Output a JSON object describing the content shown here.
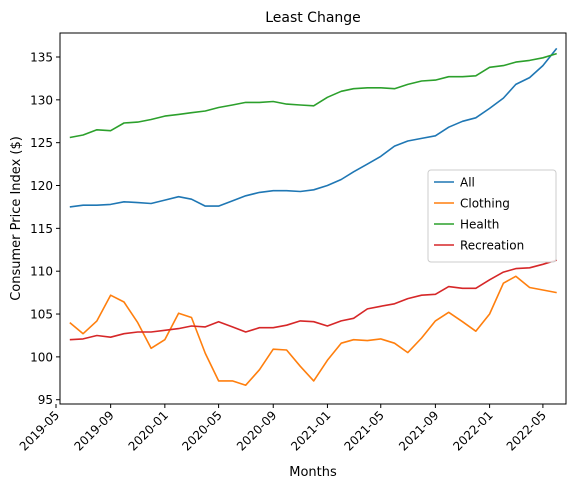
{
  "chart_data": {
    "type": "line",
    "title": "Least Change",
    "xlabel": "Months",
    "ylabel": "Consumer Price Index ($)",
    "xlim": [
      "2019-05-10",
      "2022-06-22"
    ],
    "ylim": [
      94.5,
      137.8
    ],
    "x_ticks": [
      "2019-05",
      "2019-09",
      "2020-01",
      "2020-05",
      "2020-09",
      "2021-01",
      "2021-05",
      "2021-09",
      "2022-01",
      "2022-05"
    ],
    "y_ticks": [
      95,
      100,
      105,
      110,
      115,
      120,
      125,
      130,
      135
    ],
    "grid": false,
    "legend_position": "center-right",
    "x": [
      "2019-06",
      "2019-07",
      "2019-08",
      "2019-09",
      "2019-10",
      "2019-11",
      "2019-12",
      "2020-01",
      "2020-02",
      "2020-03",
      "2020-04",
      "2020-05",
      "2020-06",
      "2020-07",
      "2020-08",
      "2020-09",
      "2020-10",
      "2020-11",
      "2020-12",
      "2021-01",
      "2021-02",
      "2021-03",
      "2021-04",
      "2021-05",
      "2021-06",
      "2021-07",
      "2021-08",
      "2021-09",
      "2021-10",
      "2021-11",
      "2021-12",
      "2022-01",
      "2022-02",
      "2022-03",
      "2022-04",
      "2022-05",
      "2022-06"
    ],
    "series": [
      {
        "name": "All",
        "color": "#1f77b4",
        "values": [
          117.5,
          117.7,
          117.7,
          117.8,
          118.1,
          118.0,
          117.9,
          118.3,
          118.7,
          118.4,
          117.6,
          117.6,
          118.2,
          118.8,
          119.2,
          119.4,
          119.4,
          119.3,
          119.5,
          120.0,
          120.7,
          121.6,
          122.5,
          123.4,
          124.6,
          125.2,
          125.5,
          125.8,
          126.8,
          127.5,
          127.9,
          129.0,
          130.2,
          131.8,
          132.6,
          134.0,
          136.0
        ]
      },
      {
        "name": "Clothing",
        "color": "#ff7f0e",
        "values": [
          104.0,
          102.7,
          104.2,
          107.2,
          106.4,
          104.0,
          101.0,
          102.0,
          105.1,
          104.6,
          100.4,
          97.2,
          97.2,
          96.7,
          98.5,
          100.9,
          100.8,
          98.9,
          97.2,
          99.6,
          101.6,
          102.0,
          101.9,
          102.1,
          101.6,
          100.5,
          102.2,
          104.2,
          105.2,
          104.1,
          103.0,
          105.0,
          108.6,
          109.4,
          108.1,
          107.8,
          107.5
        ]
      },
      {
        "name": "Health",
        "color": "#2ca02c",
        "values": [
          125.6,
          125.9,
          126.5,
          126.4,
          127.3,
          127.4,
          127.7,
          128.1,
          128.3,
          128.5,
          128.7,
          129.1,
          129.4,
          129.7,
          129.7,
          129.8,
          129.5,
          129.4,
          129.3,
          130.3,
          131.0,
          131.3,
          131.4,
          131.4,
          131.3,
          131.8,
          132.2,
          132.3,
          132.7,
          132.7,
          132.8,
          133.8,
          134.0,
          134.4,
          134.6,
          134.9,
          135.4
        ]
      },
      {
        "name": "Recreation",
        "color": "#d62728",
        "values": [
          102.0,
          102.1,
          102.5,
          102.3,
          102.7,
          102.9,
          102.9,
          103.1,
          103.3,
          103.6,
          103.5,
          104.1,
          103.5,
          102.9,
          103.4,
          103.4,
          103.7,
          104.2,
          104.1,
          103.6,
          104.2,
          104.5,
          105.6,
          105.9,
          106.2,
          106.8,
          107.2,
          107.3,
          108.2,
          108.0,
          108.0,
          109.0,
          109.9,
          110.3,
          110.4,
          110.8,
          111.3
        ]
      }
    ]
  }
}
